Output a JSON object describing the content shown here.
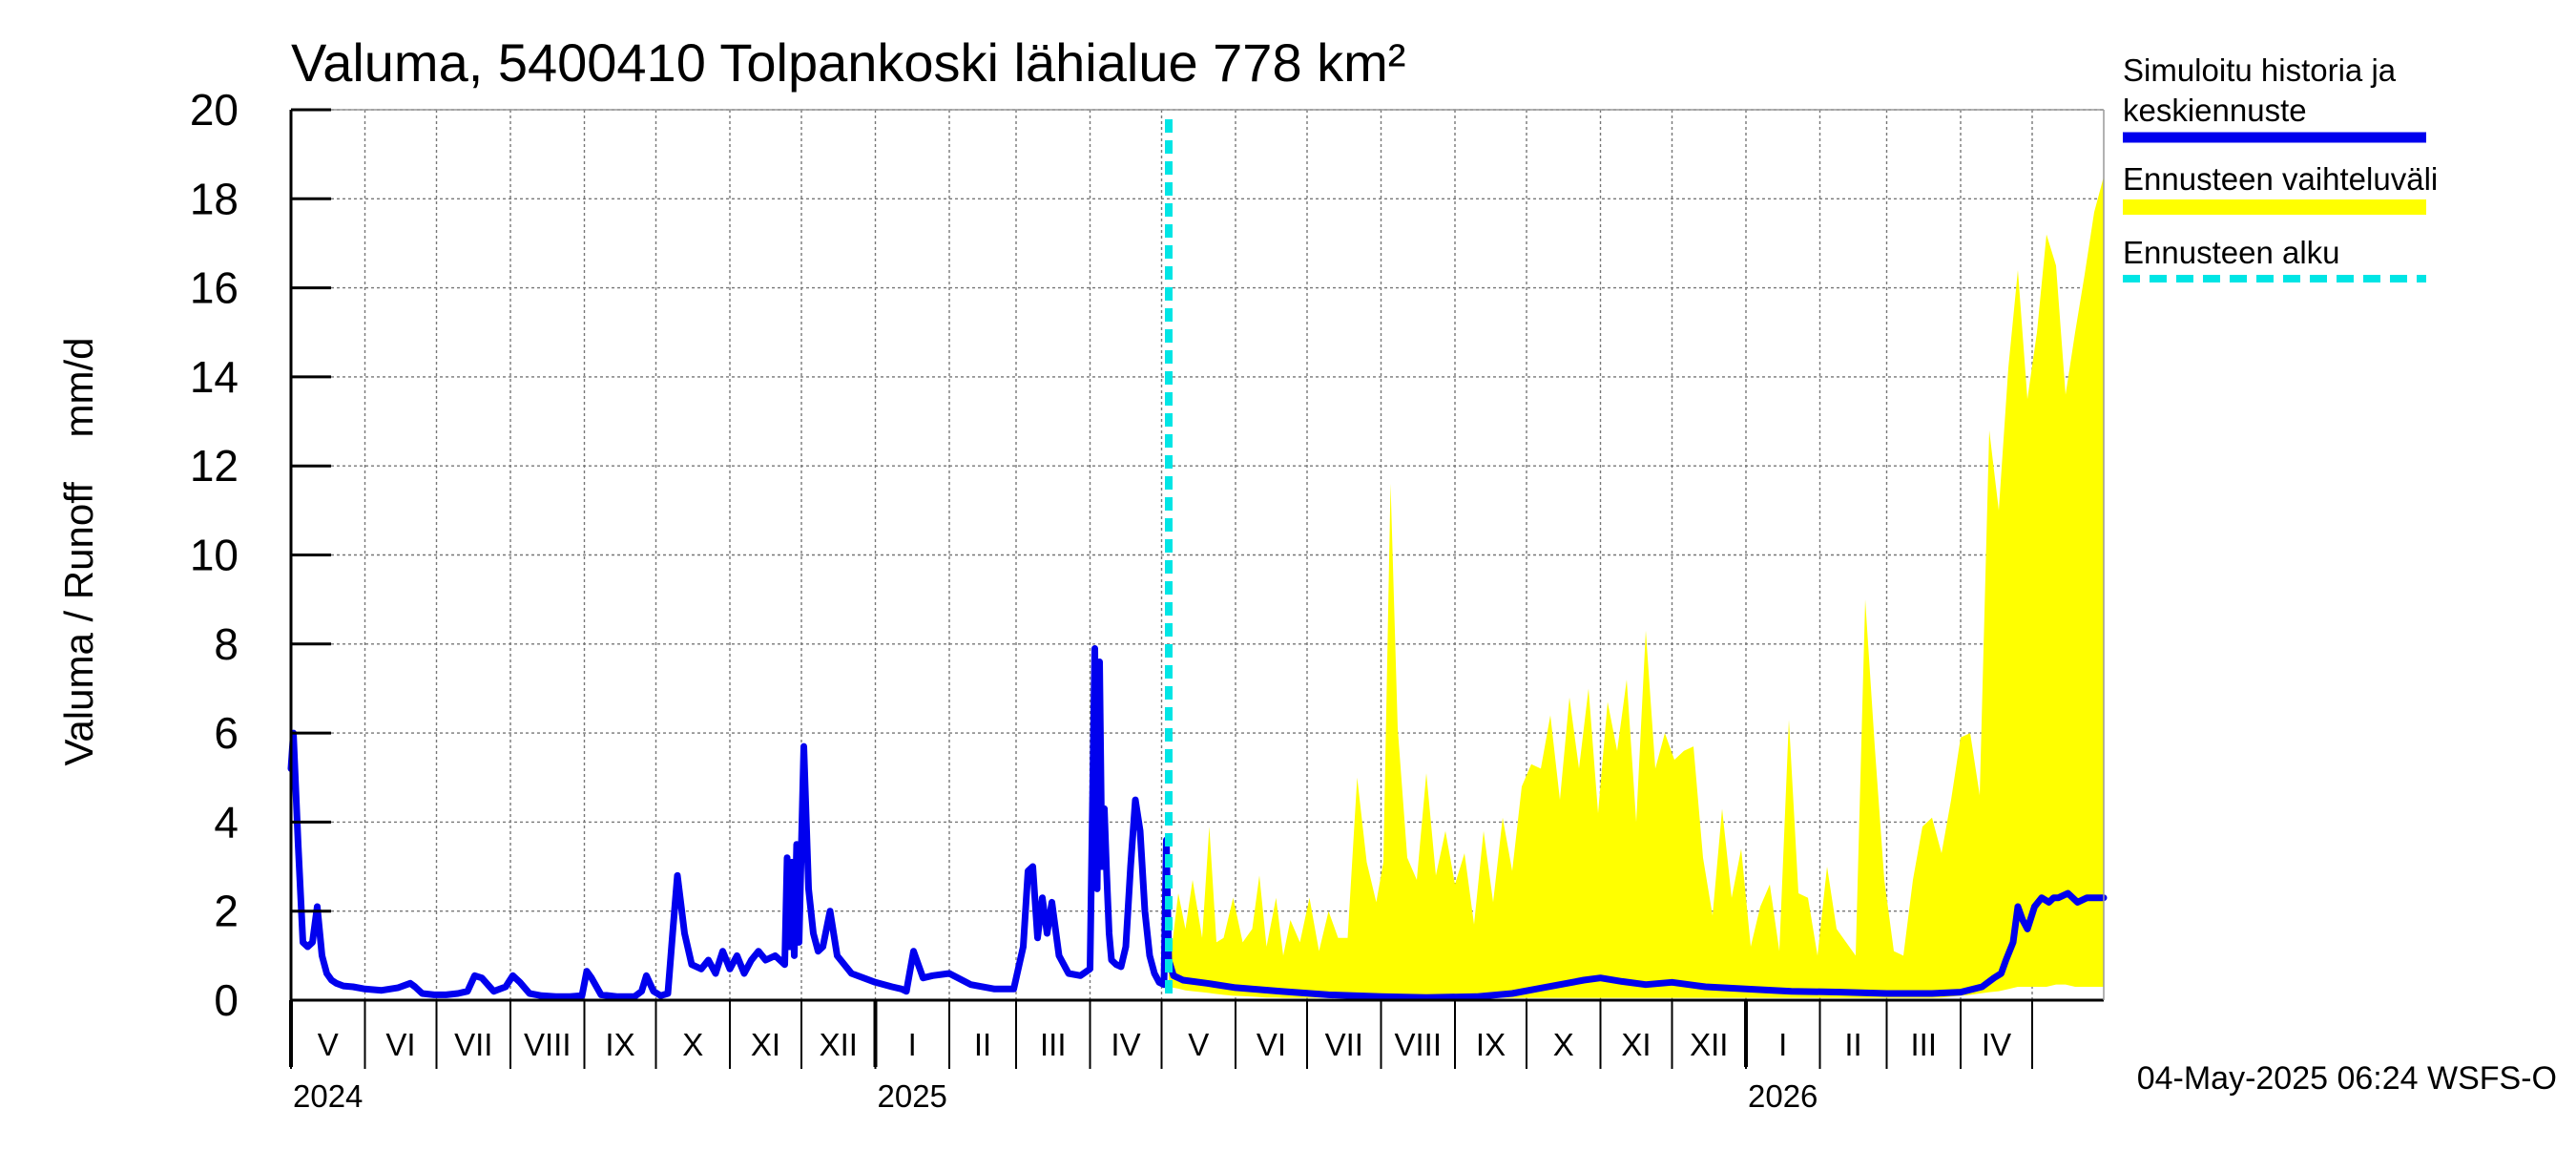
{
  "chart_data": {
    "type": "line",
    "title": "Valuma, 5400410 Tolpankoski lähialue 778 km²",
    "ylabel": "Valuma / Runoff    mm/d",
    "xlabel": "",
    "ylim": [
      0,
      20
    ],
    "yticks": [
      0,
      2,
      4,
      6,
      8,
      10,
      12,
      14,
      16,
      18,
      20
    ],
    "xlim": [
      "2024-05-01",
      "2026-05-31"
    ],
    "grid": true,
    "months": [
      {
        "label": "V",
        "start": "2024-05-01"
      },
      {
        "label": "VI",
        "start": "2024-06-01"
      },
      {
        "label": "VII",
        "start": "2024-07-01"
      },
      {
        "label": "VIII",
        "start": "2024-08-01"
      },
      {
        "label": "IX",
        "start": "2024-09-01"
      },
      {
        "label": "X",
        "start": "2024-10-01"
      },
      {
        "label": "XI",
        "start": "2024-11-01"
      },
      {
        "label": "XII",
        "start": "2024-12-01"
      },
      {
        "label": "I",
        "start": "2025-01-01"
      },
      {
        "label": "II",
        "start": "2025-02-01"
      },
      {
        "label": "III",
        "start": "2025-03-01"
      },
      {
        "label": "IV",
        "start": "2025-04-01"
      },
      {
        "label": "V",
        "start": "2025-05-01"
      },
      {
        "label": "VI",
        "start": "2025-06-01"
      },
      {
        "label": "VII",
        "start": "2025-07-01"
      },
      {
        "label": "VIII",
        "start": "2025-08-01"
      },
      {
        "label": "IX",
        "start": "2025-09-01"
      },
      {
        "label": "X",
        "start": "2025-10-01"
      },
      {
        "label": "XI",
        "start": "2025-11-01"
      },
      {
        "label": "XII",
        "start": "2025-12-01"
      },
      {
        "label": "I",
        "start": "2026-01-01"
      },
      {
        "label": "II",
        "start": "2026-02-01"
      },
      {
        "label": "III",
        "start": "2026-03-01"
      },
      {
        "label": "IV",
        "start": "2026-04-01"
      },
      {
        "label": "",
        "start": "2026-05-01"
      }
    ],
    "years": [
      {
        "label": "2024",
        "start": "2024-05-01"
      },
      {
        "label": "2025",
        "start": "2025-01-01"
      },
      {
        "label": "2026",
        "start": "2026-01-01"
      }
    ],
    "forecast_start": "2025-05-04",
    "legend_position": "right",
    "legend": [
      {
        "label_line1": "Simuloitu historia ja",
        "label_line2": "keskiennuste",
        "color": "#0000ee",
        "style": "solid"
      },
      {
        "label_line1": "Ennusteen vaihteluväli",
        "label_line2": "",
        "color": "#ffff00",
        "style": "band"
      },
      {
        "label_line1": "Ennusteen alku",
        "label_line2": "",
        "color": "#00e5e5",
        "style": "dashed"
      }
    ],
    "series": [
      {
        "name": "Simuloitu historia ja keskiennuste",
        "color": "#0000ee",
        "x": [
          "2024-05-01",
          "2024-05-02",
          "2024-05-04",
          "2024-05-06",
          "2024-05-08",
          "2024-05-10",
          "2024-05-12",
          "2024-05-14",
          "2024-05-16",
          "2024-05-18",
          "2024-05-20",
          "2024-05-23",
          "2024-05-27",
          "2024-06-01",
          "2024-06-08",
          "2024-06-15",
          "2024-06-20",
          "2024-06-22",
          "2024-06-25",
          "2024-06-30",
          "2024-07-05",
          "2024-07-10",
          "2024-07-14",
          "2024-07-17",
          "2024-07-20",
          "2024-07-25",
          "2024-07-30",
          "2024-08-02",
          "2024-08-05",
          "2024-08-09",
          "2024-08-14",
          "2024-08-20",
          "2024-08-26",
          "2024-08-31",
          "2024-09-02",
          "2024-09-04",
          "2024-09-08",
          "2024-09-15",
          "2024-09-22",
          "2024-09-25",
          "2024-09-27",
          "2024-09-30",
          "2024-10-03",
          "2024-10-06",
          "2024-10-08",
          "2024-10-10",
          "2024-10-13",
          "2024-10-16",
          "2024-10-20",
          "2024-10-23",
          "2024-10-26",
          "2024-10-29",
          "2024-11-01",
          "2024-11-04",
          "2024-11-07",
          "2024-11-10",
          "2024-11-13",
          "2024-11-16",
          "2024-11-20",
          "2024-11-22",
          "2024-11-24",
          "2024-11-25",
          "2024-11-26",
          "2024-11-27",
          "2024-11-28",
          "2024-11-29",
          "2024-11-30",
          "2024-12-02",
          "2024-12-04",
          "2024-12-06",
          "2024-12-08",
          "2024-12-10",
          "2024-12-13",
          "2024-12-16",
          "2024-12-22",
          "2025-01-01",
          "2025-01-08",
          "2025-01-12",
          "2025-01-14",
          "2025-01-17",
          "2025-01-21",
          "2025-01-25",
          "2025-02-01",
          "2025-02-10",
          "2025-02-20",
          "2025-02-28",
          "2025-03-04",
          "2025-03-06",
          "2025-03-08",
          "2025-03-10",
          "2025-03-12",
          "2025-03-14",
          "2025-03-16",
          "2025-03-19",
          "2025-03-23",
          "2025-03-28",
          "2025-04-01",
          "2025-04-03",
          "2025-04-04",
          "2025-04-05",
          "2025-04-06",
          "2025-04-07",
          "2025-04-08",
          "2025-04-09",
          "2025-04-10",
          "2025-04-12",
          "2025-04-14",
          "2025-04-16",
          "2025-04-18",
          "2025-04-20",
          "2025-04-22",
          "2025-04-24",
          "2025-04-26",
          "2025-04-28",
          "2025-04-30",
          "2025-05-02",
          "2025-05-03",
          "2025-05-04",
          "2025-05-06",
          "2025-05-10",
          "2025-05-20",
          "2025-06-01",
          "2025-06-20",
          "2025-07-10",
          "2025-08-01",
          "2025-08-20",
          "2025-09-10",
          "2025-09-25",
          "2025-10-05",
          "2025-10-15",
          "2025-10-25",
          "2025-11-01",
          "2025-11-10",
          "2025-11-20",
          "2025-12-01",
          "2025-12-15",
          "2026-01-01",
          "2026-01-20",
          "2026-02-10",
          "2026-03-01",
          "2026-03-20",
          "2026-04-01",
          "2026-04-10",
          "2026-04-15",
          "2026-04-18",
          "2026-04-20",
          "2026-04-23",
          "2026-04-25",
          "2026-04-27",
          "2026-04-29",
          "2026-05-02",
          "2026-05-05",
          "2026-05-08",
          "2026-05-10",
          "2026-05-12",
          "2026-05-16",
          "2026-05-20",
          "2026-05-24",
          "2026-05-28",
          "2026-05-31"
        ],
        "y": [
          5.2,
          6.0,
          3.5,
          1.3,
          1.2,
          1.3,
          2.1,
          1.0,
          0.6,
          0.45,
          0.38,
          0.32,
          0.3,
          0.25,
          0.22,
          0.28,
          0.38,
          0.3,
          0.15,
          0.12,
          0.12,
          0.15,
          0.2,
          0.55,
          0.5,
          0.2,
          0.3,
          0.55,
          0.4,
          0.15,
          0.1,
          0.08,
          0.08,
          0.1,
          0.65,
          0.5,
          0.12,
          0.08,
          0.08,
          0.2,
          0.55,
          0.2,
          0.1,
          0.15,
          1.5,
          2.8,
          1.5,
          0.8,
          0.7,
          0.9,
          0.6,
          1.1,
          0.7,
          1.0,
          0.6,
          0.9,
          1.1,
          0.9,
          1.0,
          0.9,
          0.8,
          3.2,
          1.2,
          3.1,
          1.0,
          3.5,
          1.3,
          5.7,
          2.5,
          1.5,
          1.1,
          1.2,
          2.0,
          1.0,
          0.6,
          0.4,
          0.3,
          0.25,
          0.2,
          1.1,
          0.5,
          0.55,
          0.6,
          0.35,
          0.25,
          0.25,
          1.2,
          2.9,
          3.0,
          1.4,
          2.3,
          1.5,
          2.2,
          1.0,
          0.6,
          0.55,
          0.7,
          7.9,
          2.5,
          7.6,
          3.0,
          4.3,
          2.8,
          1.5,
          0.9,
          0.8,
          0.75,
          1.2,
          3.0,
          4.5,
          3.8,
          2.0,
          1.0,
          0.6,
          0.4,
          0.35,
          3.6,
          0.9,
          0.55,
          0.45,
          0.38,
          0.28,
          0.2,
          0.12,
          0.08,
          0.06,
          0.08,
          0.15,
          0.25,
          0.35,
          0.45,
          0.5,
          0.42,
          0.35,
          0.4,
          0.3,
          0.25,
          0.2,
          0.18,
          0.15,
          0.15,
          0.18,
          0.3,
          0.5,
          0.6,
          0.9,
          1.3,
          2.1,
          1.8,
          1.6,
          2.1,
          2.3,
          2.2,
          2.3,
          2.3,
          2.4,
          2.2,
          2.3,
          2.3,
          2.3
        ]
      }
    ],
    "band": {
      "name": "Ennusteen vaihteluväli",
      "color": "#ffff00",
      "x": [
        "2025-05-04",
        "2025-05-08",
        "2025-05-11",
        "2025-05-14",
        "2025-05-18",
        "2025-05-21",
        "2025-05-24",
        "2025-05-27",
        "2025-05-31",
        "2025-06-04",
        "2025-06-08",
        "2025-06-11",
        "2025-06-14",
        "2025-06-18",
        "2025-06-21",
        "2025-06-24",
        "2025-06-28",
        "2025-07-02",
        "2025-07-06",
        "2025-07-10",
        "2025-07-14",
        "2025-07-18",
        "2025-07-22",
        "2025-07-26",
        "2025-07-30",
        "2025-08-02",
        "2025-08-05",
        "2025-08-08",
        "2025-08-12",
        "2025-08-16",
        "2025-08-20",
        "2025-08-24",
        "2025-08-28",
        "2025-09-01",
        "2025-09-05",
        "2025-09-09",
        "2025-09-13",
        "2025-09-17",
        "2025-09-21",
        "2025-09-25",
        "2025-09-29",
        "2025-10-03",
        "2025-10-07",
        "2025-10-11",
        "2025-10-15",
        "2025-10-19",
        "2025-10-23",
        "2025-10-27",
        "2025-10-31",
        "2025-11-04",
        "2025-11-08",
        "2025-11-12",
        "2025-11-16",
        "2025-11-20",
        "2025-11-24",
        "2025-11-28",
        "2025-12-02",
        "2025-12-06",
        "2025-12-10",
        "2025-12-14",
        "2025-12-18",
        "2025-12-22",
        "2025-12-26",
        "2025-12-30",
        "2026-01-03",
        "2026-01-07",
        "2026-01-11",
        "2026-01-15",
        "2026-01-19",
        "2026-01-23",
        "2026-01-27",
        "2026-01-31",
        "2026-02-04",
        "2026-02-08",
        "2026-02-12",
        "2026-02-16",
        "2026-02-20",
        "2026-02-24",
        "2026-02-28",
        "2026-03-04",
        "2026-03-08",
        "2026-03-12",
        "2026-03-16",
        "2026-03-20",
        "2026-03-24",
        "2026-03-28",
        "2026-04-01",
        "2026-04-05",
        "2026-04-09",
        "2026-04-13",
        "2026-04-17",
        "2026-04-21",
        "2026-04-25",
        "2026-04-29",
        "2026-05-03",
        "2026-05-07",
        "2026-05-11",
        "2026-05-15",
        "2026-05-19",
        "2026-05-23",
        "2026-05-27",
        "2026-05-31"
      ],
      "upper": [
        0.6,
        2.4,
        1.6,
        2.7,
        1.4,
        3.9,
        1.3,
        1.4,
        2.3,
        1.3,
        1.6,
        2.8,
        1.2,
        2.3,
        1.0,
        1.8,
        1.3,
        2.3,
        1.1,
        2.0,
        1.4,
        1.4,
        5.0,
        3.1,
        2.2,
        3.1,
        11.6,
        6.1,
        3.2,
        2.7,
        5.1,
        2.8,
        3.8,
        2.6,
        3.3,
        1.7,
        3.8,
        2.2,
        4.1,
        2.9,
        4.8,
        5.3,
        5.2,
        6.4,
        4.5,
        6.8,
        5.2,
        7.0,
        4.2,
        6.7,
        5.6,
        7.2,
        4.0,
        8.3,
        5.2,
        6.0,
        5.4,
        5.6,
        5.7,
        3.2,
        1.9,
        4.3,
        2.3,
        3.4,
        1.2,
        2.1,
        2.6,
        1.1,
        6.3,
        2.4,
        2.3,
        1.0,
        3.0,
        1.6,
        1.3,
        1.0,
        9.0,
        5.7,
        2.7,
        1.1,
        1.0,
        2.7,
        3.9,
        4.1,
        3.3,
        4.5,
        5.9,
        6.0,
        4.6,
        12.8,
        11.0,
        14.2,
        16.4,
        13.5,
        15.0,
        17.2,
        16.5,
        13.6,
        15.0,
        16.3,
        17.7,
        18.5
      ],
      "lower": [
        0.3,
        0.26,
        0.22,
        0.2,
        0.18,
        0.16,
        0.14,
        0.12,
        0.1,
        0.09,
        0.08,
        0.07,
        0.06,
        0.06,
        0.05,
        0.05,
        0.05,
        0.05,
        0.05,
        0.05,
        0.05,
        0.05,
        0.05,
        0.05,
        0.05,
        0.05,
        0.05,
        0.05,
        0.05,
        0.05,
        0.05,
        0.05,
        0.05,
        0.05,
        0.05,
        0.05,
        0.05,
        0.05,
        0.05,
        0.05,
        0.05,
        0.05,
        0.05,
        0.05,
        0.05,
        0.05,
        0.05,
        0.05,
        0.05,
        0.05,
        0.05,
        0.05,
        0.05,
        0.05,
        0.05,
        0.05,
        0.05,
        0.05,
        0.05,
        0.05,
        0.05,
        0.05,
        0.05,
        0.05,
        0.05,
        0.05,
        0.05,
        0.05,
        0.05,
        0.05,
        0.05,
        0.05,
        0.05,
        0.05,
        0.05,
        0.05,
        0.05,
        0.05,
        0.05,
        0.05,
        0.05,
        0.05,
        0.05,
        0.05,
        0.06,
        0.08,
        0.1,
        0.12,
        0.15,
        0.18,
        0.2,
        0.25,
        0.3,
        0.3,
        0.3,
        0.3,
        0.35,
        0.35,
        0.3,
        0.3,
        0.3,
        0.3
      ]
    },
    "footer": "04-May-2025 06:24 WSFS-O"
  }
}
